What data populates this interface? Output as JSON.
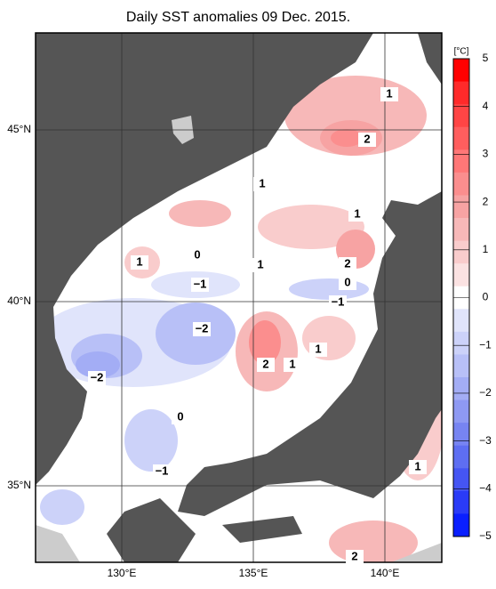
{
  "title": "Daily SST anomalies 09 Dec. 2015.",
  "map": {
    "lon_ticks": [
      "130°E",
      "135°E",
      "140°E"
    ],
    "lat_ticks": [
      "45°N",
      "40°N",
      "35°N"
    ],
    "contour_labels": [
      "1",
      "2",
      "1",
      "1",
      "0",
      "1",
      "2",
      "1",
      "0",
      "−1",
      "−1",
      "−2",
      "1",
      "2",
      "1",
      "−2",
      "0",
      "−1",
      "1",
      "2"
    ]
  },
  "colorbar": {
    "unit": "[°C]",
    "ticks": [
      "5",
      "4",
      "3",
      "2",
      "1",
      "0",
      "−1",
      "−2",
      "−3",
      "−4",
      "−5"
    ],
    "colors": [
      "#ff0000",
      "#ff2a2a",
      "#ff4545",
      "#ff5e5e",
      "#ff7777",
      "#fb8e8e",
      "#f7a3a3",
      "#f7b8b8",
      "#f9cccc",
      "#fbe2e2",
      "#ffffff",
      "#e0e4fb",
      "#ccd2f9",
      "#b8c0f7",
      "#a3adf5",
      "#8e99f3",
      "#7784f2",
      "#5e6ef2",
      "#4555f3",
      "#2a3bf7",
      "#0a1fff"
    ]
  }
}
